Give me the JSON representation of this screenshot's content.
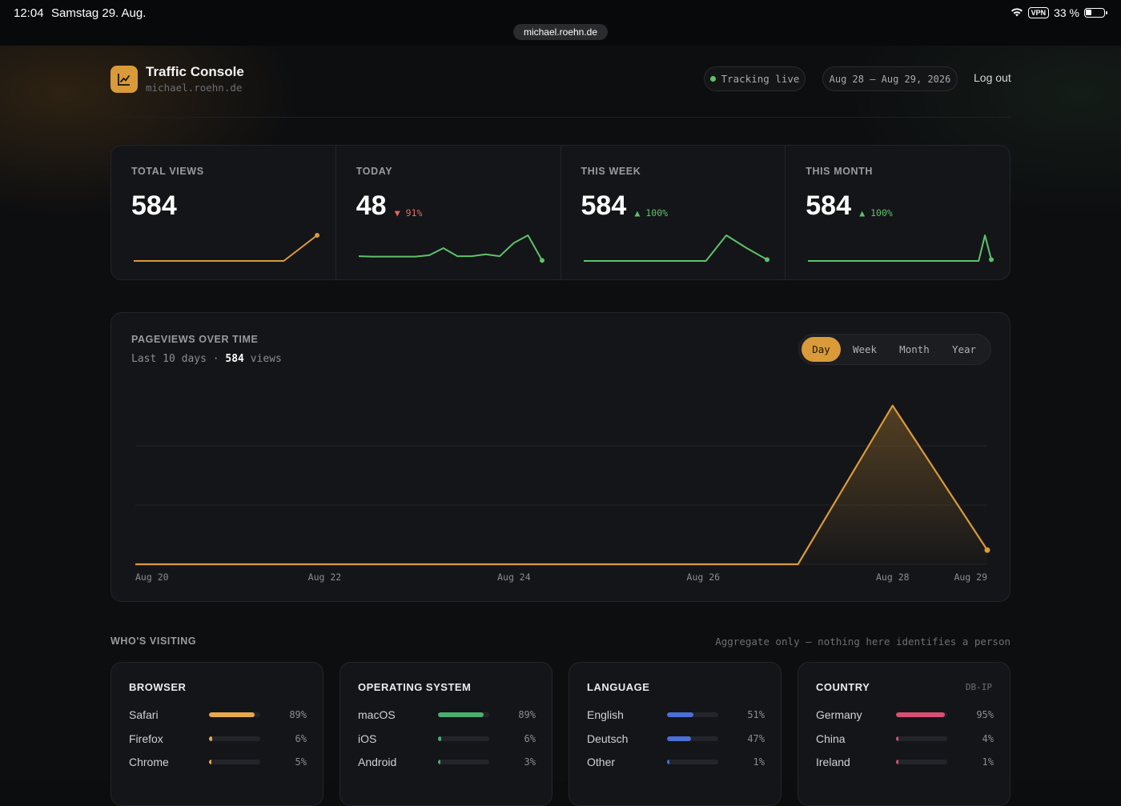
{
  "status_bar": {
    "time": "12:04",
    "date": "Samstag 29. Aug.",
    "vpn": "VPN",
    "battery": "33 %",
    "url": "michael.roehn.de"
  },
  "header": {
    "title": "Traffic Console",
    "subtitle": "michael.roehn.de",
    "live_label": "Tracking live",
    "date_range": "Aug 28 – Aug 29, 2026",
    "logout_label": "Log out"
  },
  "stats": [
    {
      "label": "TOTAL VIEWS",
      "value": "584",
      "delta": "",
      "trend": "none",
      "color": "#d99a3a",
      "spark": [
        0,
        0,
        0,
        0,
        0,
        0,
        0,
        0,
        0,
        0,
        1,
        2
      ]
    },
    {
      "label": "TODAY",
      "value": "48",
      "delta": "▼ 91%",
      "trend": "down",
      "color": "#5ec26a",
      "spark": [
        1,
        0.9,
        0.9,
        0.9,
        0.9,
        1.2,
        2.7,
        1,
        1,
        1.4,
        1,
        3.8,
        5.4,
        0.1
      ]
    },
    {
      "label": "THIS WEEK",
      "value": "584",
      "delta": "▲ 100%",
      "trend": "up",
      "color": "#5ec26a",
      "spark": [
        0,
        0,
        0,
        0,
        0,
        0,
        0,
        1,
        0.5,
        0.05
      ]
    },
    {
      "label": "THIS MONTH",
      "value": "584",
      "delta": "▲ 100%",
      "trend": "up",
      "color": "#5ec26a",
      "spark": [
        0,
        0,
        0,
        0,
        0,
        0,
        0,
        0,
        0,
        0,
        0,
        0,
        0,
        0,
        0,
        0,
        0,
        0,
        0,
        0,
        0,
        0,
        0,
        0,
        0,
        0,
        0,
        0,
        1,
        0.05
      ]
    }
  ],
  "pageviews": {
    "title": "PAGEVIEWS OVER TIME",
    "sub_prefix": "Last 10 days · ",
    "sub_count": "584",
    "sub_suffix": " views",
    "tabs": [
      {
        "label": "Day",
        "active": true
      },
      {
        "label": "Week",
        "active": false
      },
      {
        "label": "Month",
        "active": false
      },
      {
        "label": "Year",
        "active": false
      }
    ]
  },
  "chart_data": {
    "type": "area",
    "title": "PAGEVIEWS OVER TIME",
    "x": [
      "Aug 20",
      "Aug 21",
      "Aug 22",
      "Aug 23",
      "Aug 24",
      "Aug 25",
      "Aug 26",
      "Aug 27",
      "Aug 28",
      "Aug 29"
    ],
    "values": [
      0,
      0,
      0,
      0,
      0,
      0,
      0,
      0,
      536,
      48
    ],
    "tick_labels": [
      "Aug 20",
      "Aug 22",
      "Aug 24",
      "Aug 26",
      "Aug 28",
      "Aug 29"
    ],
    "color": "#d99a3a",
    "grid": true,
    "ylim": [
      0,
      600
    ]
  },
  "visiting": {
    "title": "WHO'S VISITING",
    "note": "Aggregate only — nothing here identifies a person",
    "cards": [
      {
        "title": "BROWSER",
        "source": "",
        "rows": [
          {
            "label": "Safari",
            "pct": "89%",
            "value": 0.89,
            "color": "#e8a94b"
          },
          {
            "label": "Firefox",
            "pct": "6%",
            "value": 0.06,
            "color": "#e8a94b"
          },
          {
            "label": "Chrome",
            "pct": "5%",
            "value": 0.05,
            "color": "#e8a94b"
          }
        ]
      },
      {
        "title": "OPERATING SYSTEM",
        "source": "",
        "rows": [
          {
            "label": "macOS",
            "pct": "89%",
            "value": 0.89,
            "color": "#4caf6e"
          },
          {
            "label": "iOS",
            "pct": "6%",
            "value": 0.06,
            "color": "#4caf6e"
          },
          {
            "label": "Android",
            "pct": "3%",
            "value": 0.03,
            "color": "#4caf6e"
          }
        ]
      },
      {
        "title": "LANGUAGE",
        "source": "",
        "rows": [
          {
            "label": "English",
            "pct": "51%",
            "value": 0.51,
            "color": "#4a6fd8"
          },
          {
            "label": "Deutsch",
            "pct": "47%",
            "value": 0.47,
            "color": "#4a6fd8"
          },
          {
            "label": "Other",
            "pct": "1%",
            "value": 0.01,
            "color": "#4a6fd8"
          }
        ]
      },
      {
        "title": "COUNTRY",
        "source": "DB-IP",
        "rows": [
          {
            "label": "Germany",
            "pct": "95%",
            "value": 0.95,
            "color": "#d94f72"
          },
          {
            "label": "China",
            "pct": "4%",
            "value": 0.04,
            "color": "#d94f72"
          },
          {
            "label": "Ireland",
            "pct": "1%",
            "value": 0.01,
            "color": "#d94f72"
          }
        ]
      }
    ]
  }
}
